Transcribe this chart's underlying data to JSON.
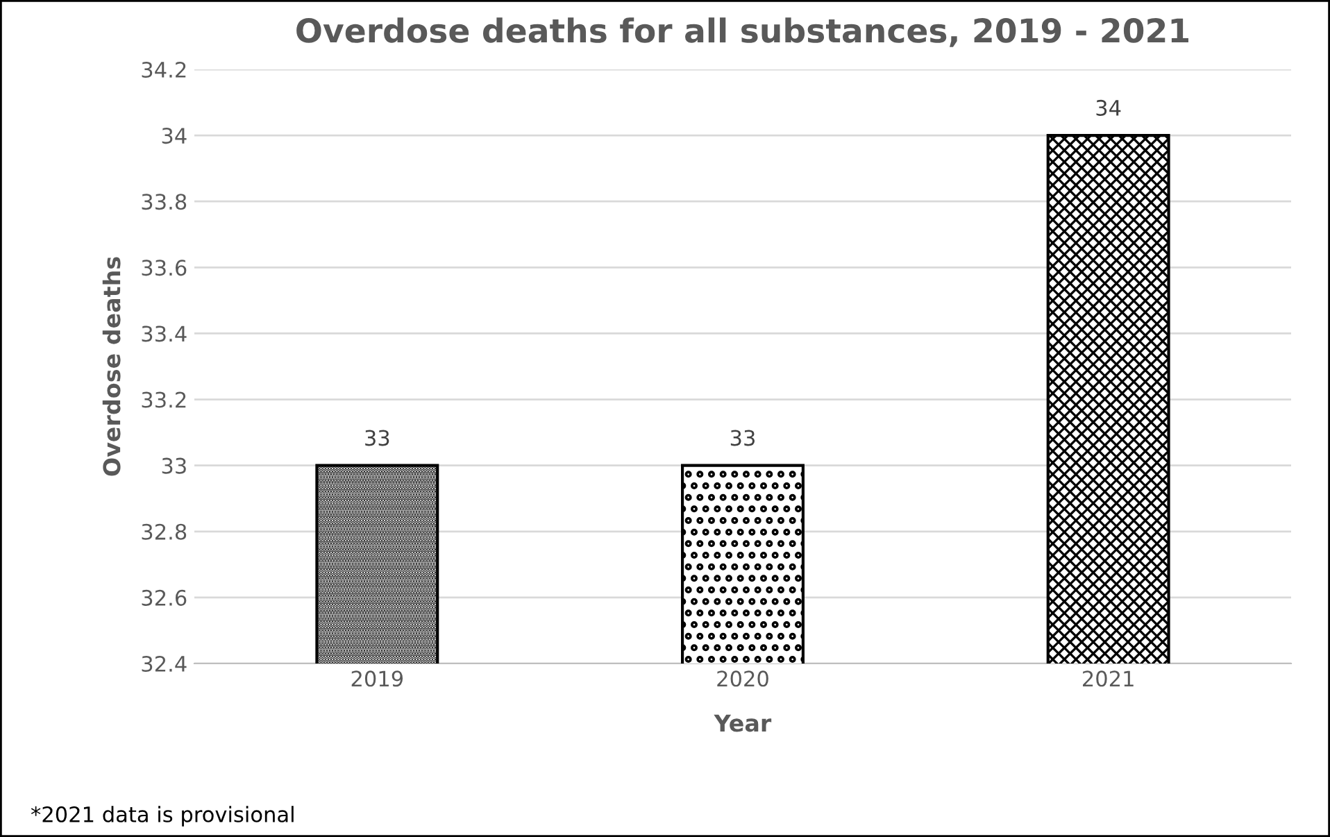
{
  "chart_data": {
    "type": "bar",
    "title": "Overdose deaths for all substances, 2019 - 2021",
    "xlabel": "Year",
    "ylabel": "Overdose deaths",
    "categories": [
      "2019",
      "2020",
      "2021"
    ],
    "values": [
      33,
      33,
      34
    ],
    "ylim": [
      32.4,
      34.2
    ],
    "yticks": [
      32.4,
      32.6,
      32.8,
      33,
      {
        "value": 33.2,
        "label": "33.2"
      },
      33.4,
      33.6,
      33.8,
      {
        "value": 34,
        "label": "34"
      },
      34.2
    ],
    "grid": "y",
    "data_labels": true,
    "legend": false,
    "annotations": [
      "*2021 data is provisional"
    ]
  }
}
